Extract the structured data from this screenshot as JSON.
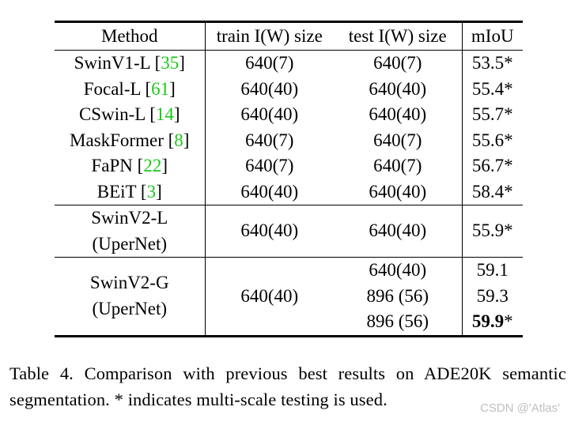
{
  "table": {
    "headers": [
      "Method",
      "train I(W) size",
      "test I(W) size",
      "mIoU"
    ],
    "rows_group1": [
      {
        "method": "SwinV1-L",
        "ref": "35",
        "train": "640(7)",
        "test": "640(7)",
        "miou": "53.5*"
      },
      {
        "method": "Focal-L",
        "ref": "61",
        "train": "640(40)",
        "test": "640(40)",
        "miou": "55.4*"
      },
      {
        "method": "CSwin-L",
        "ref": "14",
        "train": "640(40)",
        "test": "640(40)",
        "miou": "55.7*"
      },
      {
        "method": "MaskFormer",
        "ref": "8",
        "train": "640(7)",
        "test": "640(7)",
        "miou": "55.6*"
      },
      {
        "method": "FaPN",
        "ref": "22",
        "train": "640(7)",
        "test": "640(7)",
        "miou": "56.7*"
      },
      {
        "method": "BEiT",
        "ref": "3",
        "train": "640(40)",
        "test": "640(40)",
        "miou": "58.4*"
      }
    ],
    "row_swinv2l": {
      "method_line1": "SwinV2-L",
      "method_line2": "(UperNet)",
      "train": "640(40)",
      "test": "640(40)",
      "miou": "55.9*"
    },
    "row_swinv2g": {
      "method_line1": "SwinV2-G",
      "method_line2": "(UperNet)",
      "train": "640(40)",
      "tests": [
        "640(40)",
        "896 (56)",
        "896 (56)"
      ],
      "mious": [
        "59.1",
        "59.3"
      ],
      "best_miou_value": "59.9",
      "best_miou_mark": "*"
    }
  },
  "caption": "Table 4.  Comparison with previous best results on ADE20K semantic segmentation. * indicates multi-scale testing is used.",
  "watermark": "CSDN @'Atlas'",
  "colors": {
    "reference_link": "#19c919",
    "rules": "#000000"
  }
}
